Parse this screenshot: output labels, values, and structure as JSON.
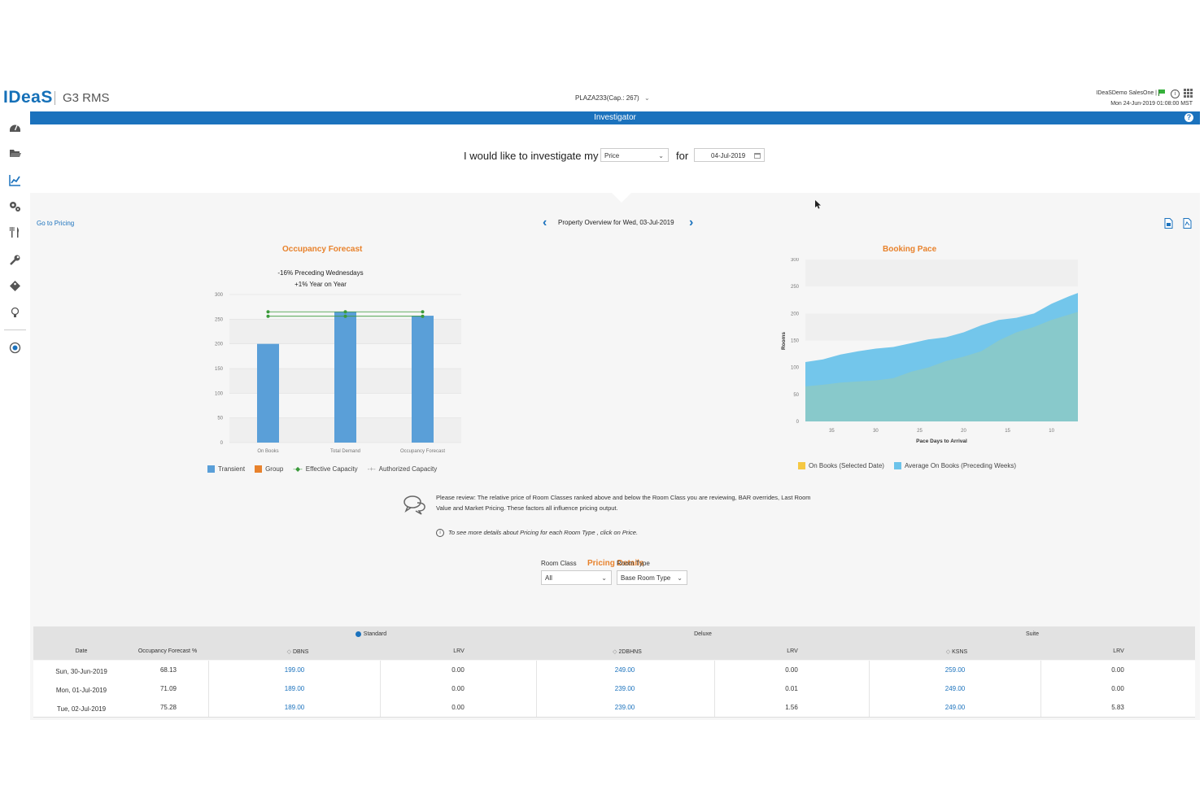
{
  "header": {
    "logo": "IDeaS",
    "product": "G3 RMS",
    "property_select": "PLAZA233(Cap.: 267)",
    "user": "IDeaSDemo SalesOne |",
    "datetime": "Mon 24-Jun-2019 01:08:00 MST",
    "module_title": "Investigator",
    "help": "?"
  },
  "sidebar": {
    "icons": [
      "dashboard-icon",
      "folder-icon",
      "chart-line-icon",
      "settings-gears-icon",
      "dining-icon",
      "wrench-icon",
      "tag-icon",
      "lightbulb-icon",
      "globe-icon"
    ]
  },
  "query": {
    "prefix": "I would like to investigate my",
    "metric": "Price",
    "for_label": "for",
    "date": "04-Jul-2019"
  },
  "overview": {
    "go_to_pricing": "Go to Pricing",
    "title": "Property Overview for Wed, 03-Jul-2019",
    "prev": "‹",
    "next": "›"
  },
  "occupancy": {
    "title": "Occupancy Forecast",
    "anno1": "-16% Preceding Wednesdays",
    "anno2": "+1% Year on Year",
    "y_ticks": [
      "300",
      "250",
      "200",
      "150",
      "100",
      "50",
      "0"
    ],
    "legend": [
      "Transient",
      "Group",
      "Effective Capacity",
      "Authorized Capacity"
    ]
  },
  "booking_pace": {
    "title": "Booking Pace",
    "y_ticks": [
      "300",
      "250",
      "200",
      "150",
      "100",
      "50",
      "0"
    ],
    "x_ticks": [
      "35",
      "30",
      "25",
      "20",
      "15",
      "10"
    ],
    "xlabel": "Pace Days to Arrival",
    "ylabel": "Rooms",
    "legend": [
      "On Books (Selected Date)",
      "Average On Books (Preceding Weeks)"
    ]
  },
  "chart_data": [
    {
      "type": "bar",
      "title": "Occupancy Forecast",
      "categories": [
        "On Books",
        "Total Demand",
        "Occupancy Forecast"
      ],
      "ylim": [
        0,
        300
      ],
      "series": [
        {
          "name": "Transient",
          "values": [
            200,
            265,
            257
          ],
          "color": "#5a9fd8"
        },
        {
          "name": "Group",
          "values": [
            0,
            0,
            0
          ],
          "color": "#e8822c"
        },
        {
          "name": "Effective Capacity",
          "values": [
            256,
            256,
            256
          ],
          "color": "#3a9a3a"
        },
        {
          "name": "Authorized Capacity",
          "values": [
            265,
            265,
            265
          ],
          "color": "#999999"
        }
      ],
      "legend": "bottom"
    },
    {
      "type": "area",
      "title": "Booking Pace",
      "xlabel": "Pace Days to Arrival",
      "ylabel": "Rooms",
      "ylim": [
        0,
        300
      ],
      "xlim": [
        38,
        7
      ],
      "x": [
        38,
        36,
        34,
        32,
        30,
        28,
        26,
        24,
        22,
        20,
        18,
        16,
        14,
        12,
        10,
        8,
        7
      ],
      "series": [
        {
          "name": "On Books (Selected Date)",
          "values": [
            65,
            68,
            72,
            74,
            76,
            80,
            92,
            100,
            112,
            120,
            130,
            150,
            165,
            175,
            188,
            198,
            203
          ],
          "color": "#f5c843"
        },
        {
          "name": "Average On Books (Preceding Weeks)",
          "values": [
            110,
            115,
            124,
            130,
            135,
            138,
            145,
            152,
            156,
            165,
            178,
            188,
            192,
            200,
            218,
            232,
            238
          ],
          "color": "#6cc3ea"
        }
      ],
      "legend": "bottom"
    }
  ],
  "review": {
    "text": "Please review: The relative price of Room Classes ranked above and below the Room Class you are reviewing, BAR overrides, Last Room Value and Market Pricing. These factors all influence pricing output.",
    "tip": "To see more details about Pricing for each Room Type , click on Price."
  },
  "pricing_details": {
    "title": "Pricing Details",
    "room_class_label": "Room Class",
    "room_class_value": "All",
    "room_type_label": "Room Type",
    "room_type_value": "Base Room Type"
  },
  "table": {
    "groups": [
      "Standard",
      "Deluxe",
      "Suite"
    ],
    "columns": [
      "Date",
      "Occupancy Forecast %",
      "DBNS",
      "LRV",
      "2DBHNS",
      "LRV",
      "KSNS",
      "LRV"
    ],
    "rows": [
      [
        "Sun, 30-Jun-2019",
        "68.13",
        "199.00",
        "0.00",
        "249.00",
        "0.00",
        "259.00",
        "0.00"
      ],
      [
        "Mon, 01-Jul-2019",
        "71.09",
        "189.00",
        "0.00",
        "239.00",
        "0.01",
        "249.00",
        "0.00"
      ],
      [
        "Tue, 02-Jul-2019",
        "75.28",
        "189.00",
        "0.00",
        "239.00",
        "1.56",
        "249.00",
        "5.83"
      ]
    ]
  }
}
